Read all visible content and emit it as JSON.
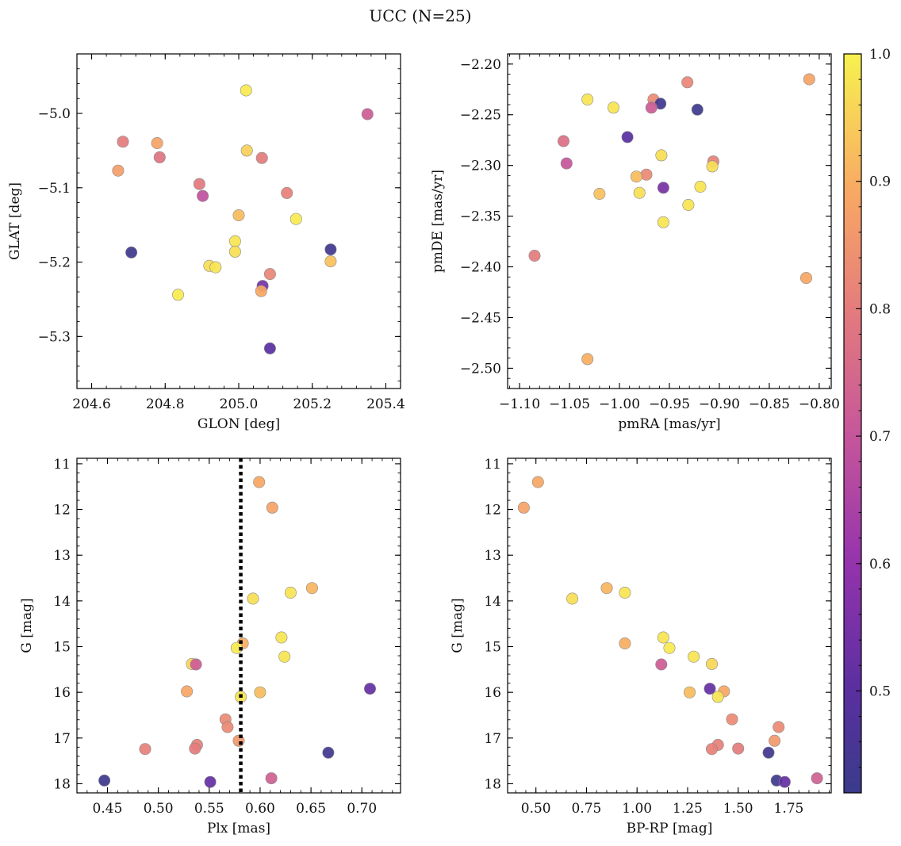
{
  "figure": {
    "title": "UCC (N=25)"
  },
  "colorbar": {
    "range": [
      0.42,
      1.0
    ],
    "ticks": [
      0.5,
      0.6,
      0.7,
      0.8,
      0.9,
      1.0
    ],
    "tick_labels": [
      "0.5",
      "0.6",
      "0.7",
      "0.8",
      "0.9",
      "1.0"
    ],
    "colormap": "plasma"
  },
  "chart_data": [
    {
      "id": "a",
      "type": "scatter",
      "xlabel": "GLON [deg]",
      "ylabel": "GLAT [deg]",
      "xlim": [
        204.56,
        205.44
      ],
      "ylim": [
        -5.37,
        -4.92
      ],
      "y_inverted": false,
      "xticks": [
        204.6,
        204.8,
        205.0,
        205.2,
        205.4
      ],
      "xtick_labels": [
        "204.6",
        "204.8",
        "205.0",
        "205.2",
        "205.4"
      ],
      "yticks": [
        -5.0,
        -5.1,
        -5.2,
        -5.3
      ],
      "ytick_labels": [
        "−5.0",
        "−5.1",
        "−5.2",
        "−5.3"
      ],
      "vline": null,
      "points": [
        {
          "x": 205.02,
          "y": -4.969,
          "c": 0.99
        },
        {
          "x": 205.35,
          "y": -5.001,
          "c": 0.72
        },
        {
          "x": 204.685,
          "y": -5.038,
          "c": 0.8
        },
        {
          "x": 204.778,
          "y": -5.04,
          "c": 0.88
        },
        {
          "x": 205.022,
          "y": -5.05,
          "c": 0.95
        },
        {
          "x": 204.785,
          "y": -5.059,
          "c": 0.78
        },
        {
          "x": 205.063,
          "y": -5.06,
          "c": 0.8
        },
        {
          "x": 204.672,
          "y": -5.077,
          "c": 0.87
        },
        {
          "x": 204.893,
          "y": -5.095,
          "c": 0.79
        },
        {
          "x": 205.131,
          "y": -5.107,
          "c": 0.81
        },
        {
          "x": 204.902,
          "y": -5.111,
          "c": 0.69
        },
        {
          "x": 205.0,
          "y": -5.137,
          "c": 0.92
        },
        {
          "x": 205.156,
          "y": -5.142,
          "c": 0.99
        },
        {
          "x": 204.99,
          "y": -5.172,
          "c": 0.98
        },
        {
          "x": 205.25,
          "y": -5.183,
          "c": 0.44
        },
        {
          "x": 204.708,
          "y": -5.187,
          "c": 0.43
        },
        {
          "x": 204.99,
          "y": -5.186,
          "c": 0.97
        },
        {
          "x": 205.25,
          "y": -5.199,
          "c": 0.93
        },
        {
          "x": 204.92,
          "y": -5.205,
          "c": 0.97
        },
        {
          "x": 204.937,
          "y": -5.207,
          "c": 0.98
        },
        {
          "x": 205.085,
          "y": -5.216,
          "c": 0.82
        },
        {
          "x": 205.065,
          "y": -5.232,
          "c": 0.55
        },
        {
          "x": 205.061,
          "y": -5.239,
          "c": 0.89
        },
        {
          "x": 204.835,
          "y": -5.244,
          "c": 0.99
        },
        {
          "x": 205.085,
          "y": -5.316,
          "c": 0.5
        }
      ]
    },
    {
      "id": "b",
      "type": "scatter",
      "xlabel": "pmRA [mas/yr]",
      "ylabel": "pmDE [mas/yr]",
      "xlim": [
        -1.112,
        -0.788
      ],
      "ylim": [
        -2.52,
        -2.19
      ],
      "y_inverted": false,
      "xticks": [
        -1.1,
        -1.05,
        -1.0,
        -0.95,
        -0.9,
        -0.85,
        -0.8
      ],
      "xtick_labels": [
        "−1.10",
        "−1.05",
        "−1.00",
        "−0.95",
        "−0.90",
        "−0.85",
        "−0.80"
      ],
      "yticks": [
        -2.2,
        -2.25,
        -2.3,
        -2.35,
        -2.4,
        -2.45,
        -2.5
      ],
      "ytick_labels": [
        "−2.20",
        "−2.25",
        "−2.30",
        "−2.35",
        "−2.40",
        "−2.45",
        "−2.50"
      ],
      "vline": null,
      "points": [
        {
          "x": -0.81,
          "y": -2.215,
          "c": 0.88
        },
        {
          "x": -0.932,
          "y": -2.218,
          "c": 0.82
        },
        {
          "x": -1.032,
          "y": -2.235,
          "c": 0.98
        },
        {
          "x": -0.966,
          "y": -2.235,
          "c": 0.83
        },
        {
          "x": -0.959,
          "y": -2.239,
          "c": 0.44
        },
        {
          "x": -0.968,
          "y": -2.243,
          "c": 0.72
        },
        {
          "x": -1.006,
          "y": -2.243,
          "c": 0.98
        },
        {
          "x": -0.922,
          "y": -2.245,
          "c": 0.43
        },
        {
          "x": -0.992,
          "y": -2.272,
          "c": 0.5
        },
        {
          "x": -1.056,
          "y": -2.276,
          "c": 0.77
        },
        {
          "x": -0.958,
          "y": -2.29,
          "c": 0.97
        },
        {
          "x": -0.906,
          "y": -2.296,
          "c": 0.81
        },
        {
          "x": -1.053,
          "y": -2.298,
          "c": 0.7
        },
        {
          "x": -0.907,
          "y": -2.301,
          "c": 0.97
        },
        {
          "x": -0.973,
          "y": -2.309,
          "c": 0.83
        },
        {
          "x": -0.983,
          "y": -2.311,
          "c": 0.92
        },
        {
          "x": -0.919,
          "y": -2.321,
          "c": 0.98
        },
        {
          "x": -0.956,
          "y": -2.322,
          "c": 0.55
        },
        {
          "x": -0.98,
          "y": -2.327,
          "c": 0.97
        },
        {
          "x": -1.02,
          "y": -2.328,
          "c": 0.93
        },
        {
          "x": -0.931,
          "y": -2.339,
          "c": 0.98
        },
        {
          "x": -0.956,
          "y": -2.356,
          "c": 0.98
        },
        {
          "x": -1.085,
          "y": -2.389,
          "c": 0.8
        },
        {
          "x": -0.813,
          "y": -2.411,
          "c": 0.89
        },
        {
          "x": -1.032,
          "y": -2.491,
          "c": 0.9
        }
      ]
    },
    {
      "id": "c",
      "type": "scatter",
      "xlabel": "Plx [mas]",
      "ylabel": "G [mag]",
      "xlim": [
        0.42,
        0.738
      ],
      "ylim": [
        18.2,
        10.88
      ],
      "y_inverted": true,
      "xticks": [
        0.45,
        0.5,
        0.55,
        0.6,
        0.65,
        0.7
      ],
      "xtick_labels": [
        "0.45",
        "0.50",
        "0.55",
        "0.60",
        "0.65",
        "0.70"
      ],
      "yticks": [
        11,
        12,
        13,
        14,
        15,
        16,
        17,
        18
      ],
      "ytick_labels": [
        "11",
        "12",
        "13",
        "14",
        "15",
        "16",
        "17",
        "18"
      ],
      "vline": 0.581,
      "points": [
        {
          "x": 0.599,
          "y": 11.4,
          "c": 0.89
        },
        {
          "x": 0.612,
          "y": 11.96,
          "c": 0.88
        },
        {
          "x": 0.651,
          "y": 13.72,
          "c": 0.91
        },
        {
          "x": 0.63,
          "y": 13.82,
          "c": 0.98
        },
        {
          "x": 0.593,
          "y": 13.95,
          "c": 0.97
        },
        {
          "x": 0.621,
          "y": 14.8,
          "c": 0.98
        },
        {
          "x": 0.583,
          "y": 14.93,
          "c": 0.9
        },
        {
          "x": 0.577,
          "y": 15.03,
          "c": 0.99
        },
        {
          "x": 0.624,
          "y": 15.22,
          "c": 0.98
        },
        {
          "x": 0.533,
          "y": 15.38,
          "c": 0.96
        },
        {
          "x": 0.537,
          "y": 15.39,
          "c": 0.72
        },
        {
          "x": 0.708,
          "y": 15.92,
          "c": 0.52
        },
        {
          "x": 0.528,
          "y": 15.98,
          "c": 0.89
        },
        {
          "x": 0.6,
          "y": 16.0,
          "c": 0.92
        },
        {
          "x": 0.581,
          "y": 16.1,
          "c": 0.98
        },
        {
          "x": 0.566,
          "y": 16.59,
          "c": 0.83
        },
        {
          "x": 0.568,
          "y": 16.76,
          "c": 0.83
        },
        {
          "x": 0.579,
          "y": 17.06,
          "c": 0.86
        },
        {
          "x": 0.538,
          "y": 17.15,
          "c": 0.81
        },
        {
          "x": 0.487,
          "y": 17.24,
          "c": 0.81
        },
        {
          "x": 0.536,
          "y": 17.23,
          "c": 0.8
        },
        {
          "x": 0.667,
          "y": 17.32,
          "c": 0.44
        },
        {
          "x": 0.611,
          "y": 17.88,
          "c": 0.73
        },
        {
          "x": 0.447,
          "y": 17.93,
          "c": 0.43
        },
        {
          "x": 0.551,
          "y": 17.96,
          "c": 0.52
        }
      ]
    },
    {
      "id": "d",
      "type": "scatter",
      "xlabel": "BP-RP [mag]",
      "ylabel": "G [mag]",
      "xlim": [
        0.36,
        1.96
      ],
      "ylim": [
        18.2,
        10.88
      ],
      "y_inverted": true,
      "xticks": [
        0.5,
        0.75,
        1.0,
        1.25,
        1.5,
        1.75
      ],
      "xtick_labels": [
        "0.50",
        "0.75",
        "1.00",
        "1.25",
        "1.50",
        "1.75"
      ],
      "yticks": [
        11,
        12,
        13,
        14,
        15,
        16,
        17,
        18
      ],
      "ytick_labels": [
        "11",
        "12",
        "13",
        "14",
        "15",
        "16",
        "17",
        "18"
      ],
      "vline": null,
      "points": [
        {
          "x": 0.51,
          "y": 11.4,
          "c": 0.89
        },
        {
          "x": 0.44,
          "y": 11.96,
          "c": 0.88
        },
        {
          "x": 0.85,
          "y": 13.72,
          "c": 0.91
        },
        {
          "x": 0.94,
          "y": 13.82,
          "c": 0.98
        },
        {
          "x": 0.68,
          "y": 13.95,
          "c": 0.97
        },
        {
          "x": 1.13,
          "y": 14.8,
          "c": 0.98
        },
        {
          "x": 0.94,
          "y": 14.93,
          "c": 0.9
        },
        {
          "x": 1.16,
          "y": 15.03,
          "c": 0.99
        },
        {
          "x": 1.28,
          "y": 15.22,
          "c": 0.98
        },
        {
          "x": 1.37,
          "y": 15.38,
          "c": 0.96
        },
        {
          "x": 1.12,
          "y": 15.39,
          "c": 0.72
        },
        {
          "x": 1.36,
          "y": 15.92,
          "c": 0.52
        },
        {
          "x": 1.43,
          "y": 15.98,
          "c": 0.89
        },
        {
          "x": 1.26,
          "y": 16.0,
          "c": 0.92
        },
        {
          "x": 1.4,
          "y": 16.1,
          "c": 0.98
        },
        {
          "x": 1.47,
          "y": 16.59,
          "c": 0.83
        },
        {
          "x": 1.7,
          "y": 16.76,
          "c": 0.83
        },
        {
          "x": 1.68,
          "y": 17.06,
          "c": 0.86
        },
        {
          "x": 1.4,
          "y": 17.15,
          "c": 0.81
        },
        {
          "x": 1.37,
          "y": 17.24,
          "c": 0.81
        },
        {
          "x": 1.5,
          "y": 17.23,
          "c": 0.8
        },
        {
          "x": 1.65,
          "y": 17.32,
          "c": 0.44
        },
        {
          "x": 1.89,
          "y": 17.88,
          "c": 0.73
        },
        {
          "x": 1.69,
          "y": 17.93,
          "c": 0.43
        },
        {
          "x": 1.73,
          "y": 17.96,
          "c": 0.52
        }
      ]
    }
  ]
}
